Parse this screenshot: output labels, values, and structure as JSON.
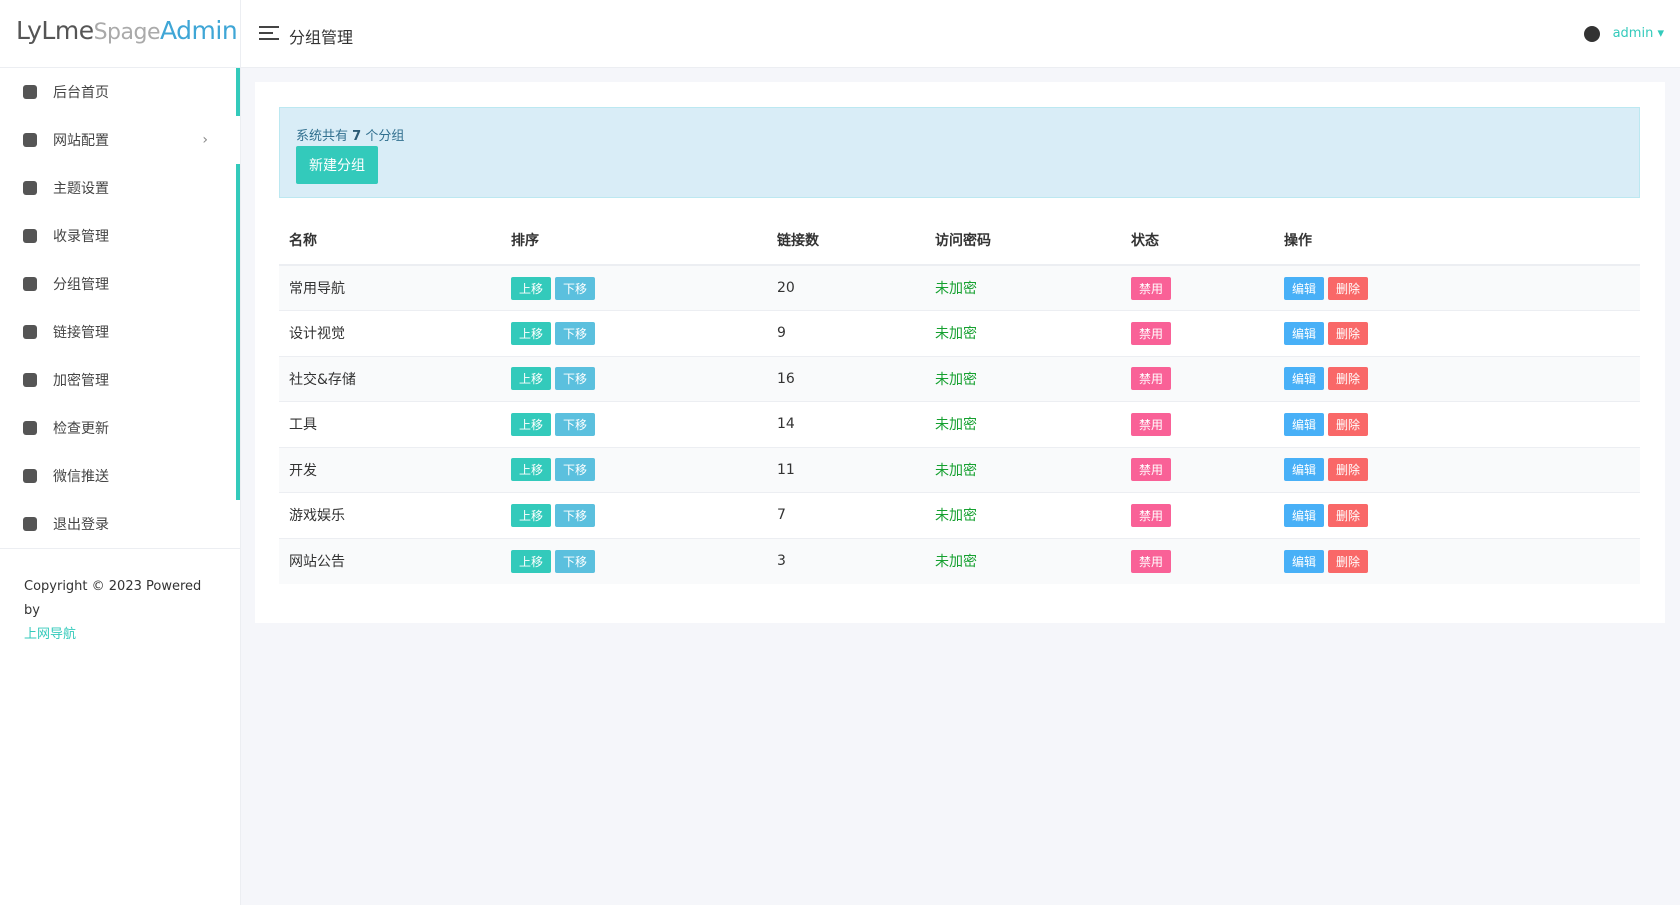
{
  "brand": {
    "part1": "LyLme",
    "part2": "Spage",
    "part3": "Admin"
  },
  "topbar": {
    "title": "分组管理",
    "user": "admin"
  },
  "sidebar": {
    "menu": [
      "后台首页",
      "网站配置",
      "主题设置",
      "收录管理",
      "分组管理",
      "链接管理",
      "加密管理",
      "检查更新",
      "微信推送",
      "退出登录"
    ],
    "footer": {
      "copyright": "Copyright © 2023 Powered by",
      "link": "上网导航"
    }
  },
  "alert": {
    "prefix": "系统共有",
    "count": 7,
    "suffix": "个分组",
    "button": "新建分组"
  },
  "table": {
    "headers": [
      "名称",
      "排序",
      "链接数",
      "访问密码",
      "状态",
      "操作"
    ],
    "rows": [
      [
        "常用导航",
        "上移",
        "下移",
        20,
        "未加密",
        "禁用",
        "编辑",
        "删除"
      ],
      [
        "设计视觉",
        "上移",
        "下移",
        9,
        "未加密",
        "禁用",
        "编辑",
        "删除"
      ],
      [
        "社交&存储",
        "上移",
        "下移",
        16,
        "未加密",
        "禁用",
        "编辑",
        "删除"
      ],
      [
        "工具",
        "上移",
        "下移",
        14,
        "未加密",
        "禁用",
        "编辑",
        "删除"
      ],
      [
        "开发",
        "上移",
        "下移",
        11,
        "未加密",
        "禁用",
        "编辑",
        "删除"
      ],
      [
        "游戏娱乐",
        "上移",
        "下移",
        7,
        "未加密",
        "禁用",
        "编辑",
        "删除"
      ],
      [
        "网站公告",
        "上移",
        "下移",
        3,
        "未加密",
        "禁用",
        "编辑",
        "删除"
      ]
    ]
  }
}
